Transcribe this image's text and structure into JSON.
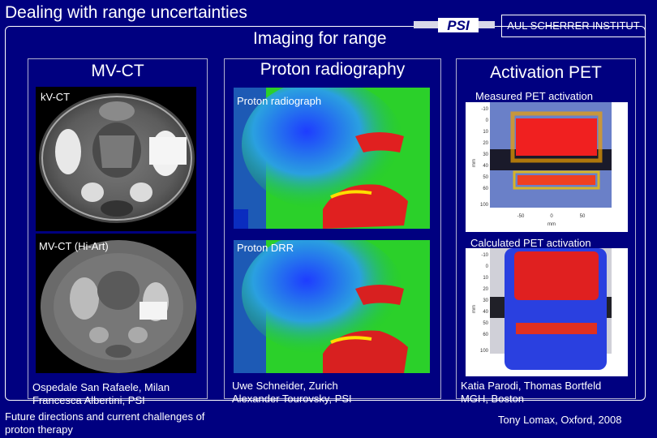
{
  "slide": {
    "title": "Dealing with range uncertainties",
    "subtitle": "Imaging for range",
    "institute": "AUL SCHERRER INSTITUT",
    "logo_text": "PSI"
  },
  "columns": [
    {
      "heading": "MV-CT",
      "panels": [
        {
          "label": "kV-CT"
        },
        {
          "label": "MV-CT (Hi-Art)"
        }
      ],
      "credit": [
        "Ospedale San Rafaele, Milan",
        "Francesca Albertini, PSI"
      ]
    },
    {
      "heading": "Proton radiography",
      "panels": [
        {
          "label": "Proton radiograph"
        },
        {
          "label": "Proton DRR"
        }
      ],
      "credit": [
        "Uwe Schneider, Zurich",
        "Alexander Tourovsky, PSI"
      ]
    },
    {
      "heading": "Activation PET",
      "panels": [
        {
          "label": "Measured PET activation"
        },
        {
          "label": "Calculated PET activation"
        }
      ],
      "credit": [
        "Katia Parodi, Thomas Bortfeld",
        "MGH, Boston"
      ]
    }
  ],
  "pet_axis": {
    "y_ticks": [
      "-10",
      "0",
      "10",
      "20",
      "30",
      "40",
      "50",
      "60",
      "100"
    ],
    "x_ticks": [
      "-50",
      "0",
      "50"
    ],
    "x_unit": "mm",
    "y_unit": "mm"
  },
  "footer": {
    "left_line1": "Future directions and current challenges of",
    "left_line2": "proton therapy",
    "right": "Tony Lomax, Oxford, 2008"
  },
  "colors": {
    "background": "#000080",
    "text": "#ffffff"
  }
}
